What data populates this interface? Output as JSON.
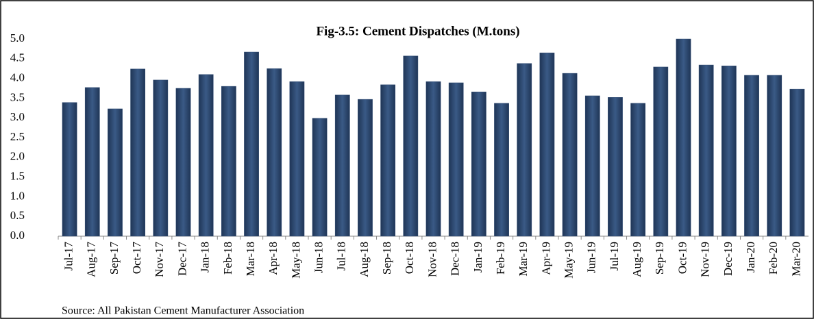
{
  "chart_data": {
    "type": "bar",
    "title": "Fig-3.5: Cement Dispatches (M.tons)",
    "source": "Source: All Pakistan Cement Manufacturer Association",
    "categories": [
      "Jul-17",
      "Aug-17",
      "Sep-17",
      "Oct-17",
      "Nov-17",
      "Dec-17",
      "Jan-18",
      "Feb-18",
      "Mar-18",
      "Apr-18",
      "May-18",
      "Jun-18",
      "Jul-18",
      "Aug-18",
      "Sep-18",
      "Oct-18",
      "Nov-18",
      "Dec-18",
      "Jan-19",
      "Feb-19",
      "Mar-19",
      "Apr-19",
      "May-19",
      "Jun-19",
      "Jul-19",
      "Aug-19",
      "Sep-19",
      "Oct-19",
      "Nov-19",
      "Dec-19",
      "Jan-20",
      "Feb-20",
      "Mar-20"
    ],
    "values": [
      3.39,
      3.77,
      3.23,
      4.24,
      3.96,
      3.75,
      4.1,
      3.8,
      4.67,
      4.25,
      3.92,
      2.99,
      3.58,
      3.47,
      3.84,
      4.57,
      3.92,
      3.89,
      3.66,
      3.37,
      4.38,
      4.65,
      4.13,
      3.56,
      3.52,
      3.37,
      4.29,
      5.0,
      4.34,
      4.32,
      4.08,
      4.08,
      3.73
    ],
    "color": "#2f4b73",
    "ylim": [
      0,
      5
    ],
    "yticks": [
      {
        "value": 0,
        "label": "0.0"
      },
      {
        "value": 0.5,
        "label": "0.5"
      },
      {
        "value": 1,
        "label": "1.0"
      },
      {
        "value": 1.5,
        "label": "1.5"
      },
      {
        "value": 2,
        "label": "2.0"
      },
      {
        "value": 2.5,
        "label": "2.5"
      },
      {
        "value": 3,
        "label": "3.0"
      },
      {
        "value": 3.5,
        "label": "3.5"
      },
      {
        "value": 4,
        "label": "4.0"
      },
      {
        "value": 4.5,
        "label": "4.5"
      },
      {
        "value": 5,
        "label": "5.0"
      }
    ],
    "grid": false
  }
}
